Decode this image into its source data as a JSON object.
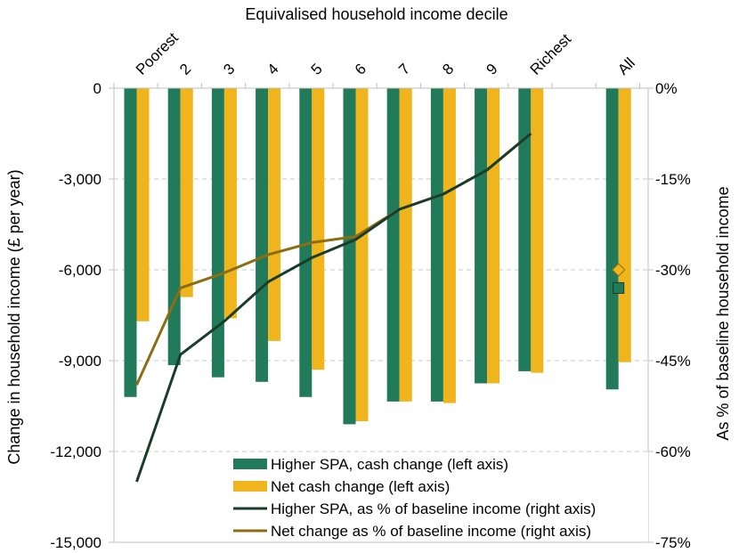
{
  "chart_data": {
    "type": "bar",
    "title": "",
    "x_axis_title": "Equivalised household income decile",
    "ylabel_left": "Change in household income (£ per year)",
    "ylabel_right": "As % of baseline household income",
    "categories": [
      "Poorest",
      "2",
      "3",
      "4",
      "5",
      "6",
      "7",
      "8",
      "9",
      "Richest",
      "All"
    ],
    "ylim_left": [
      -15000,
      0
    ],
    "ylim_right": [
      -75,
      0
    ],
    "left_ticks": [
      "0",
      "-3,000",
      "-6,000",
      "-9,000",
      "-12,000",
      "-15,000"
    ],
    "left_tick_values": [
      0,
      -3000,
      -6000,
      -9000,
      -12000,
      -15000
    ],
    "right_ticks": [
      "0%",
      "-15%",
      "-30%",
      "-45%",
      "-60%",
      "-75%"
    ],
    "right_tick_values": [
      0,
      -15,
      -30,
      -45,
      -60,
      -75
    ],
    "grid": true,
    "legend_position": "bottom-center",
    "series": [
      {
        "name": "Higher SPA, cash change (left axis)",
        "type": "bar",
        "axis": "left",
        "color": "#217a5a",
        "values": [
          -10200,
          -9150,
          -9550,
          -9700,
          -10200,
          -11100,
          -10350,
          -10350,
          -9750,
          -9350,
          -9950
        ]
      },
      {
        "name": "Net cash change (left axis)",
        "type": "bar",
        "axis": "left",
        "color": "#f0b41c",
        "values": [
          -7700,
          -6900,
          -7600,
          -8350,
          -9300,
          -11000,
          -10350,
          -10400,
          -9750,
          -9400,
          -9050
        ]
      },
      {
        "name": "Higher SPA, as % of baseline income (right axis)",
        "type": "line",
        "axis": "right",
        "color": "#1a3d2b",
        "values": [
          -65,
          -44,
          -38.5,
          -32,
          -28,
          -25,
          -20,
          -17.5,
          -13.5,
          -7.5,
          -33
        ]
      },
      {
        "name": "Net change as % of baseline income (right axis)",
        "type": "line",
        "axis": "right",
        "color": "#8c6d14",
        "values": [
          -49,
          -33,
          -30.5,
          -27.5,
          -25.5,
          -24.5,
          -20,
          -17.5,
          -13.5,
          -7.5,
          -30
        ]
      }
    ],
    "all_markers_note_categories": [
      "All"
    ]
  }
}
